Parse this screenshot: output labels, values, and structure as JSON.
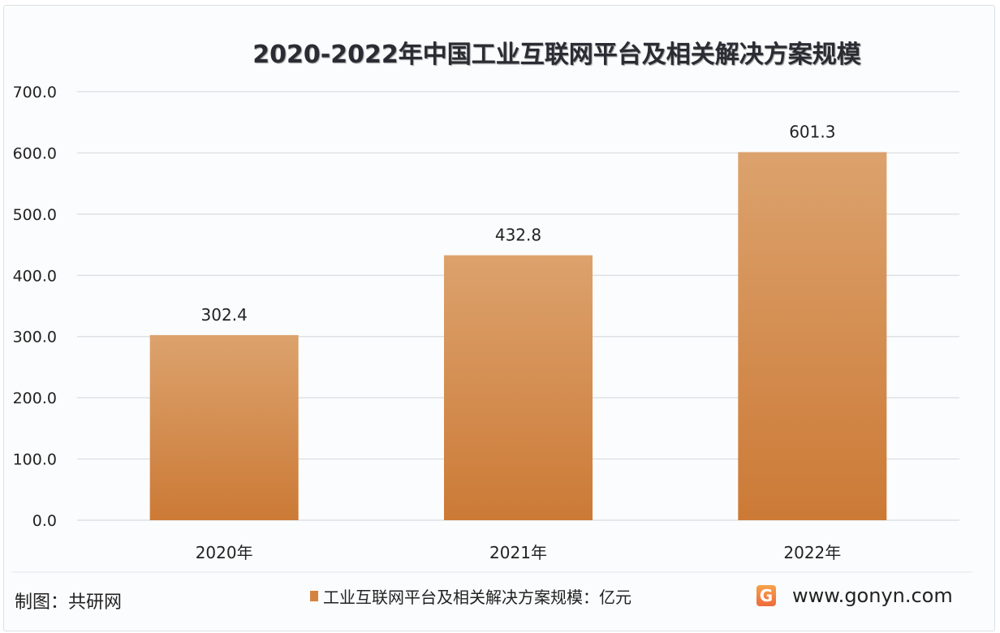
{
  "chart_data": {
    "type": "bar",
    "title": "2020-2022年中国工业互联网平台及相关解决方案规模",
    "categories": [
      "2020年",
      "2021年",
      "2022年"
    ],
    "series": [
      {
        "name": "工业互联网平台及相关解决方案规模：亿元",
        "values": [
          302.4,
          432.8,
          601.3
        ]
      }
    ],
    "data_labels": [
      "302.4",
      "432.8",
      "601.3"
    ],
    "ylim": [
      0,
      700
    ],
    "yticks": [
      "0.0",
      "100.0",
      "200.0",
      "300.0",
      "400.0",
      "500.0",
      "600.0",
      "700.0"
    ],
    "grid": true,
    "legend": "bottom",
    "bar_color_top": "#dca26d",
    "bar_color_bottom": "#cc7a36"
  },
  "footer": {
    "credit": "制图：共研网",
    "site": "www.gonyn.com",
    "logo_letter": "G"
  }
}
